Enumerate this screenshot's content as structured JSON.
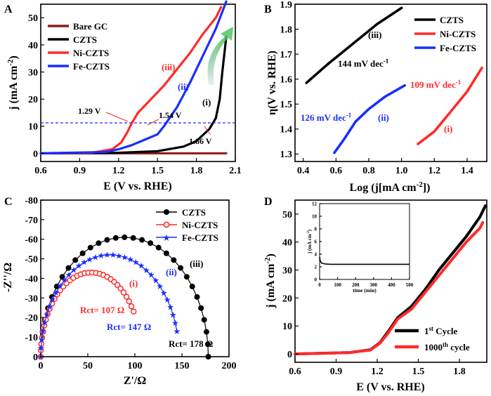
{
  "colors": {
    "black": "#000000",
    "red": "#ff2a2a",
    "blue": "#1a2dff",
    "darkred": "#8b1a1a",
    "green": "#5fd26a"
  },
  "chart_data": [
    {
      "panel": "A",
      "type": "line",
      "xlabel": "E (V vs. RHE)",
      "ylabel": "j (mA cm-2)",
      "xlim": [
        0.6,
        2.1
      ],
      "ylim": [
        -3,
        55
      ],
      "xticks": [
        "0.6",
        "0.9",
        "1.2",
        "1.5",
        "1.8",
        "2.1"
      ],
      "yticks": [
        "0",
        "10",
        "20",
        "30",
        "40",
        "50"
      ],
      "legend": [
        "Bare GC",
        "CZTS",
        "Ni-CZTS",
        "Fe-CZTS"
      ],
      "legend_position": "top-left",
      "reference_line_y": 10,
      "annotations": [
        "1.29 V",
        "1.54 V",
        "1.86 V",
        "(i)",
        "(ii)",
        "(iii)"
      ],
      "series": [
        {
          "name": "Bare GC",
          "color": "#8b1a1a",
          "x": [
            0.6,
            2.03
          ],
          "y": [
            0,
            0
          ]
        },
        {
          "name": "CZTS",
          "color": "#000000",
          "x": [
            0.6,
            1.2,
            1.5,
            1.7,
            1.8,
            1.9,
            1.95,
            1.98,
            2.0,
            2.03
          ],
          "y": [
            0,
            0.2,
            0.8,
            2.5,
            4.5,
            9,
            13,
            20,
            30,
            43
          ]
        },
        {
          "name": "Ni-CZTS",
          "color": "#ff2a2a",
          "x": [
            0.6,
            1.0,
            1.15,
            1.22,
            1.27,
            1.3,
            1.35,
            1.45,
            1.55,
            1.65,
            1.75,
            1.85,
            1.95,
            1.99
          ],
          "y": [
            0,
            0.3,
            1.5,
            4,
            8,
            11,
            15,
            20,
            25,
            31,
            37,
            44,
            50,
            54
          ]
        },
        {
          "name": "Fe-CZTS",
          "color": "#1a2dff",
          "x": [
            0.6,
            1.1,
            1.2,
            1.3,
            1.4,
            1.5,
            1.55,
            1.65,
            1.75,
            1.85,
            1.95,
            2.03
          ],
          "y": [
            0,
            0.5,
            1.5,
            3,
            5,
            7,
            10,
            17,
            26,
            36,
            46,
            56
          ]
        }
      ]
    },
    {
      "panel": "B",
      "type": "line",
      "xlabel": "Log (j[mA cm-2])",
      "ylabel": "η(V vs. RHE)",
      "xlim": [
        0.35,
        1.52
      ],
      "ylim": [
        1.27,
        1.9
      ],
      "xticks": [
        "0.4",
        "0.6",
        "0.8",
        "1.0",
        "1.2",
        "1.4"
      ],
      "yticks": [
        "1.3",
        "1.4",
        "1.5",
        "1.6",
        "1.7",
        "1.8",
        "1.9"
      ],
      "legend": [
        "CZTS",
        "Ni-CZTS",
        "Fe-CZTS"
      ],
      "legend_position": "top-right",
      "annotations": [
        "(iii)",
        "144 mV dec-1",
        "109 mV dec-1",
        "126 mV dec-1",
        "(ii)",
        "(i)"
      ],
      "series": [
        {
          "name": "CZTS",
          "color": "#000000",
          "x": [
            0.42,
            0.55,
            0.7,
            0.85,
            1.0
          ],
          "y": [
            1.585,
            1.66,
            1.74,
            1.82,
            1.885
          ]
        },
        {
          "name": "Ni-CZTS",
          "color": "#ff2a2a",
          "x": [
            1.1,
            1.2,
            1.3,
            1.4,
            1.49
          ],
          "y": [
            1.34,
            1.39,
            1.47,
            1.55,
            1.645
          ]
        },
        {
          "name": "Fe-CZTS",
          "color": "#1a2dff",
          "x": [
            0.59,
            0.65,
            0.72,
            0.8,
            0.9,
            1.02
          ],
          "y": [
            1.305,
            1.36,
            1.43,
            1.48,
            1.53,
            1.575
          ]
        }
      ]
    },
    {
      "panel": "C",
      "type": "scatter",
      "xlabel": "Z'/Ω",
      "ylabel": "-Z''/Ω",
      "xlim": [
        0,
        200
      ],
      "ylim": [
        0,
        -80
      ],
      "xticks": [
        "0",
        "50",
        "100",
        "150",
        "200"
      ],
      "yticks": [
        "0",
        "-10",
        "-20",
        "-30",
        "-40",
        "-50",
        "-60",
        "-70",
        "-80"
      ],
      "legend": [
        "CZTS",
        "Ni-CZTS",
        "Fe-CZTS"
      ],
      "legend_position": "top-right",
      "annotations": [
        "(iii)",
        "(ii)",
        "(i)",
        "Rct= 107 Ω",
        "Rct= 147 Ω",
        "Rct= 178 Ω"
      ],
      "series": [
        {
          "name": "CZTS",
          "color": "#000000",
          "marker": "circle",
          "rct": 178,
          "peak_x": 90,
          "peak_y": -61
        },
        {
          "name": "Ni-CZTS",
          "color": "#ff2a2a",
          "marker": "open-circle",
          "rct": 107,
          "peak_x": 70,
          "peak_y": -43
        },
        {
          "name": "Fe-CZTS",
          "color": "#1a2dff",
          "marker": "star",
          "rct": 147,
          "peak_x": 80,
          "peak_y": -52
        }
      ]
    },
    {
      "panel": "D",
      "type": "line",
      "xlabel": "E (V vs. RHE)",
      "ylabel": "j (mA cm-2)",
      "xlim": [
        0.6,
        2.0
      ],
      "ylim": [
        -3,
        55
      ],
      "xticks": [
        "0.6",
        "0.9",
        "1.2",
        "1.5",
        "1.8"
      ],
      "yticks": [
        "0",
        "10",
        "20",
        "30",
        "40",
        "50"
      ],
      "legend": [
        "1st Cycle",
        "1000th cycle"
      ],
      "legend_position": "bottom-right",
      "series": [
        {
          "name": "1st Cycle",
          "color": "#000000",
          "x": [
            0.6,
            1.0,
            1.15,
            1.22,
            1.28,
            1.35,
            1.45,
            1.55,
            1.65,
            1.75,
            1.85,
            1.95,
            1.99
          ],
          "y": [
            0,
            0.5,
            1.5,
            4,
            8,
            13,
            17,
            23,
            30,
            36,
            42,
            49,
            53
          ]
        },
        {
          "name": "1000th cycle",
          "color": "#ff2a2a",
          "x": [
            0.6,
            1.0,
            1.15,
            1.22,
            1.28,
            1.35,
            1.45,
            1.55,
            1.65,
            1.75,
            1.85,
            1.95,
            1.97
          ],
          "y": [
            0,
            0.5,
            1.4,
            3.8,
            7.5,
            12.5,
            16,
            22,
            28,
            34,
            40,
            45,
            47
          ]
        }
      ],
      "inset": {
        "xlabel": "time (min)",
        "ylabel": "j (mA cm-2)",
        "xlim": [
          0,
          500
        ],
        "ylim": [
          0,
          12
        ],
        "xticks": [
          "0",
          "100",
          "200",
          "300",
          "400",
          "500"
        ],
        "yticks": [
          "0",
          "2",
          "4",
          "6",
          "8",
          "10",
          "12"
        ],
        "x": [
          0,
          3,
          10,
          30,
          60,
          500
        ],
        "y": [
          3.6,
          3.0,
          2.6,
          2.45,
          2.4,
          2.4
        ]
      }
    }
  ],
  "panel_labels": [
    "A",
    "B",
    "C",
    "D"
  ],
  "panelA": {
    "xlabel": "E (V vs. RHE)",
    "ylabel": "j (mA cm",
    "ylabel_sup": "-2",
    "ylabel_end": ")",
    "leg": [
      "Bare GC",
      "CZTS",
      "Ni-CZTS",
      "Fe-CZTS"
    ],
    "a1": "1.29 V",
    "a2": "1.54 V",
    "a3": "1.86 V",
    "r1": "(i)",
    "r2": "(ii)",
    "r3": "(iii)"
  },
  "panelB": {
    "xlabel": "Log (j[mA cm",
    "xlabel_sup": "-2",
    "xlabel_end": "])",
    "ylabel": "η(V vs. RHE)",
    "leg": [
      "CZTS",
      "Ni-CZTS",
      "Fe-CZTS"
    ],
    "s1": "144 mV dec",
    "s2": "109 mV dec",
    "s3": "126 mV dec",
    "sup": "-1",
    "r1": "(i)",
    "r2": "(ii)",
    "r3": "(iii)"
  },
  "panelC": {
    "xlabel": "Z'/Ω",
    "ylabel": "-Z''/Ω",
    "leg": [
      "CZTS",
      "Ni-CZTS",
      "Fe-CZTS"
    ],
    "rct1": "Rct= 107 Ω",
    "rct2": "Rct= 147 Ω",
    "rct3": "Rct= 178 Ω",
    "r1": "(i)",
    "r2": "(ii)",
    "r3": "(iii)"
  },
  "panelD": {
    "xlabel": "E (V vs. RHE)",
    "ylabel": "j (mA cm",
    "ylabel_sup": "-2",
    "ylabel_end": ")",
    "leg1": "1",
    "leg1_sup": "st",
    "leg1_end": " Cycle",
    "leg2": "1000",
    "leg2_sup": "th",
    "leg2_end": " cycle",
    "inset_xlabel": "time (min)",
    "inset_ylabel": "j (mA cm",
    "inset_ylabel_sup": "-2",
    "inset_ylabel_end": ")"
  }
}
